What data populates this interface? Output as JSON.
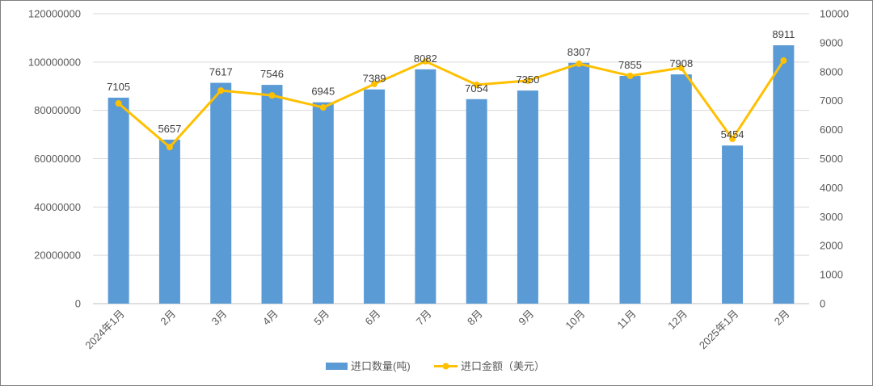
{
  "chart_data": {
    "type": "bar",
    "categories": [
      "2024年1月",
      "2月",
      "3月",
      "4月",
      "5月",
      "6月",
      "7月",
      "8月",
      "9月",
      "10月",
      "11月",
      "12月",
      "2025年1月",
      "2月"
    ],
    "series": [
      {
        "name": "进口数量(吨)",
        "type": "bar",
        "axis": "right",
        "color": "#5B9BD5",
        "data_labels": true,
        "values": [
          7105,
          5657,
          7617,
          7546,
          6945,
          7389,
          8082,
          7054,
          7350,
          8307,
          7855,
          7908,
          5454,
          8911
        ]
      },
      {
        "name": "进口金额（美元）",
        "type": "line",
        "axis": "left",
        "color": "#FFC000",
        "marker": "circle",
        "values": [
          82900000,
          64800000,
          88200000,
          86200000,
          81200000,
          90900000,
          100300000,
          90600000,
          92300000,
          99300000,
          94300000,
          97600000,
          68200000,
          100600000
        ]
      }
    ],
    "y_left": {
      "min": 0,
      "max": 120000000,
      "ticks": [
        0,
        20000000,
        40000000,
        60000000,
        80000000,
        100000000,
        120000000
      ]
    },
    "y_right": {
      "min": 0,
      "max": 10000,
      "ticks": [
        0,
        1000,
        2000,
        3000,
        4000,
        5000,
        6000,
        7000,
        8000,
        9000,
        10000
      ]
    },
    "grid": true,
    "legend": "bottom"
  }
}
